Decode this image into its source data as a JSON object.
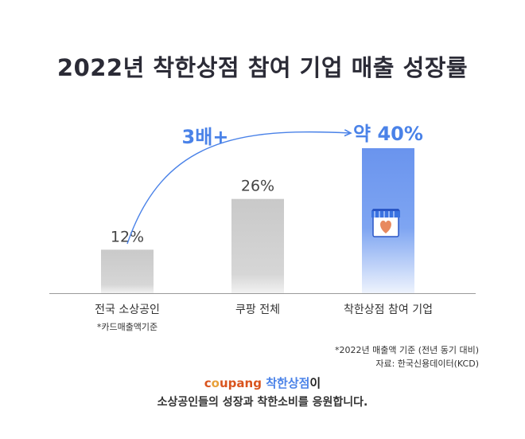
{
  "chart_data": {
    "type": "bar",
    "title": "2022년 착한상점 참여 기업 매출 성장률",
    "categories": [
      "전국 소상공인",
      "쿠팡 전체",
      "착한상점 참여 기업"
    ],
    "values": [
      12,
      26,
      40
    ],
    "value_labels": [
      "12%",
      "26%",
      "약 40%"
    ],
    "category_note": "*카드매출액기준",
    "annotation": "3배+",
    "ylim": [
      0,
      40
    ],
    "grid": false,
    "colors": {
      "bar": "#c8c8c8",
      "highlight": "#6f98ef",
      "accent": "#4a82e8"
    }
  },
  "footnote": {
    "basis": "*2022년 매출액 기준 (전년 동기 대비)",
    "source": "자료: 한국신용데이터(KCD)"
  },
  "brand": {
    "logo": "coupang",
    "campaign": "착한상점",
    "particle": "이",
    "tagline": "소상공인들의 성장과 착한소비를 응원합니다."
  },
  "icons": {
    "highlight_icon": "heart-storefront-icon"
  }
}
